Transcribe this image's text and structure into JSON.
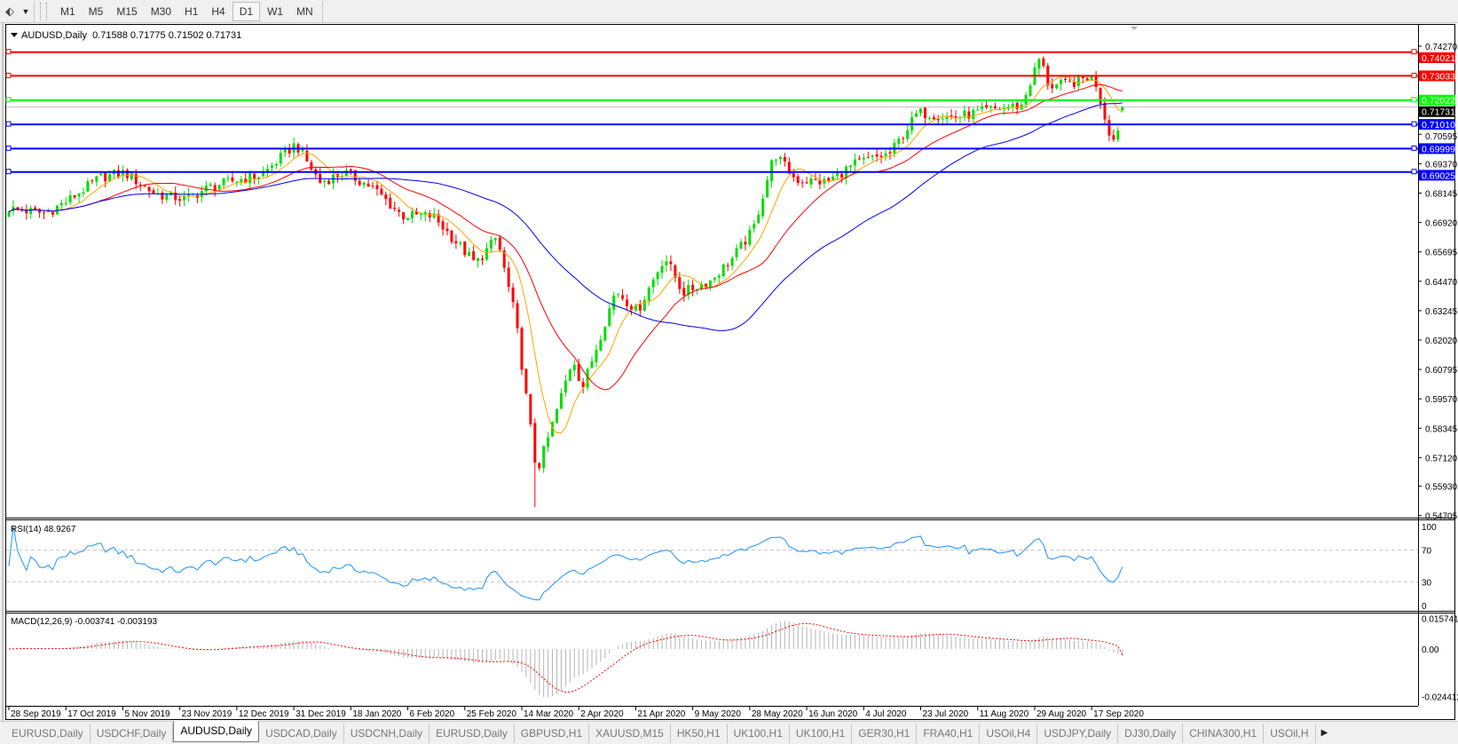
{
  "toolbar": {
    "icons": [
      "line-tools-icon",
      "dropdown-arrow-icon"
    ],
    "timeframes": [
      "M1",
      "M5",
      "M15",
      "M30",
      "H1",
      "H4",
      "D1",
      "W1",
      "MN"
    ],
    "active_timeframe": "D1"
  },
  "chart_header": "AUDUSD,Daily  0.71588 0.71775 0.71502 0.71731",
  "indicators": {
    "rsi_label": "RSI(14) 48.9267",
    "macd_label": "MACD(12,26,9) -0.003741 -0.003193"
  },
  "colors": {
    "bull": "#00dd00",
    "bear": "#ff0000",
    "ma_fast": "#ffa500",
    "ma_mid": "#ff0000",
    "ma_slow": "#0000ff",
    "rsi": "#1e90ff",
    "macd_hist": "#b4b4b4",
    "macd_signal": "#ff0000"
  },
  "chart_data": {
    "type": "candlestick",
    "symbol": "AUDUSD",
    "timeframe": "Daily",
    "last_bar": {
      "open": 0.71588,
      "high": 0.71775,
      "low": 0.71502,
      "close": 0.71731
    },
    "price_axis_ticks": [
      "0.74270",
      "0.70595",
      "0.69370",
      "0.68145",
      "0.66920",
      "0.65695",
      "0.64470",
      "0.63245",
      "0.62020",
      "0.60795",
      "0.59570",
      "0.58345",
      "0.57120",
      "0.55930",
      "0.54705"
    ],
    "ylim": [
      0.54705,
      0.7427
    ],
    "date_labels": [
      "28 Sep 2019",
      "17 Oct 2019",
      "5 Nov 2019",
      "23 Nov 2019",
      "12 Dec 2019",
      "31 Dec 2019",
      "18 Jan 2020",
      "6 Feb 2020",
      "25 Feb 2020",
      "14 Mar 2020",
      "2 Apr 2020",
      "21 Apr 2020",
      "9 May 2020",
      "28 May 2020",
      "16 Jun 2020",
      "4 Jul 2020",
      "23 Jul 2020",
      "11 Aug 2020",
      "29 Aug 2020",
      "17 Sep 2020"
    ],
    "approx_closes": [
      [
        "2019-09-28",
        0.675
      ],
      [
        "2019-10-10",
        0.673
      ],
      [
        "2019-10-17",
        0.678
      ],
      [
        "2019-10-28",
        0.688
      ],
      [
        "2019-11-05",
        0.69
      ],
      [
        "2019-11-15",
        0.681
      ],
      [
        "2019-11-25",
        0.679
      ],
      [
        "2019-12-03",
        0.684
      ],
      [
        "2019-12-12",
        0.687
      ],
      [
        "2019-12-20",
        0.689
      ],
      [
        "2019-12-31",
        0.702
      ],
      [
        "2020-01-08",
        0.686
      ],
      [
        "2020-01-16",
        0.69
      ],
      [
        "2020-01-25",
        0.684
      ],
      [
        "2020-02-04",
        0.672
      ],
      [
        "2020-02-14",
        0.672
      ],
      [
        "2020-02-21",
        0.662
      ],
      [
        "2020-02-28",
        0.652
      ],
      [
        "2020-03-06",
        0.663
      ],
      [
        "2020-03-12",
        0.63
      ],
      [
        "2020-03-19",
        0.565
      ],
      [
        "2020-03-23",
        0.58
      ],
      [
        "2020-03-31",
        0.613
      ],
      [
        "2020-04-03",
        0.6
      ],
      [
        "2020-04-14",
        0.641
      ],
      [
        "2020-04-21",
        0.632
      ],
      [
        "2020-04-30",
        0.655
      ],
      [
        "2020-05-06",
        0.64
      ],
      [
        "2020-05-15",
        0.645
      ],
      [
        "2020-05-22",
        0.654
      ],
      [
        "2020-05-29",
        0.666
      ],
      [
        "2020-06-05",
        0.698
      ],
      [
        "2020-06-12",
        0.687
      ],
      [
        "2020-06-22",
        0.686
      ],
      [
        "2020-07-02",
        0.694
      ],
      [
        "2020-07-13",
        0.698
      ],
      [
        "2020-07-22",
        0.715
      ],
      [
        "2020-08-03",
        0.713
      ],
      [
        "2020-08-14",
        0.716
      ],
      [
        "2020-08-25",
        0.718
      ],
      [
        "2020-08-31",
        0.738
      ],
      [
        "2020-09-03",
        0.726
      ],
      [
        "2020-09-10",
        0.727
      ],
      [
        "2020-09-16",
        0.73
      ],
      [
        "2020-09-18",
        0.729
      ],
      [
        "2020-09-22",
        0.71
      ],
      [
        "2020-09-24",
        0.703
      ],
      [
        "2020-09-28",
        0.71731
      ]
    ],
    "period_low": {
      "date": "2020-03-19",
      "low": 0.5506
    },
    "horizontal_levels": [
      {
        "price": "0.74021",
        "color": "#ff0000"
      },
      {
        "price": "0.73033",
        "color": "#ff0000"
      },
      {
        "price": "0.72022",
        "color": "#00ff00"
      },
      {
        "price": "0.71010",
        "color": "#0000ff"
      },
      {
        "price": "0.69999",
        "color": "#0000ff"
      },
      {
        "price": "0.69025",
        "color": "#0000ff"
      }
    ],
    "current_price": "0.71731",
    "moving_averages": [
      "fast (orange)",
      "mid (red)",
      "slow (blue)"
    ],
    "rsi": {
      "period": 14,
      "last": 48.9267,
      "levels": [
        30,
        70
      ],
      "axis_ticks": [
        "100",
        "70",
        "30",
        "0"
      ]
    },
    "macd": {
      "fast": 12,
      "slow": 26,
      "signal": 9,
      "main_last": -0.003741,
      "signal_last": -0.003193,
      "axis_ticks": [
        "0.015741",
        "0.00",
        "-0.024412"
      ]
    }
  },
  "tabs": [
    "EURUSD,Daily",
    "USDCHF,Daily",
    "AUDUSD,Daily",
    "USDCAD,Daily",
    "USDCNH,Daily",
    "EURUSD,Daily",
    "GBPUSD,H1",
    "XAUUSD,M15",
    "HK50,H1",
    "UK100,H1",
    "UK100,H1",
    "GER30,H1",
    "FRA40,H1",
    "USOil,H4",
    "USDJPY,Daily",
    "DJ30,Daily",
    "CHINA300,H1",
    "USOil,H"
  ],
  "active_tab": 2
}
